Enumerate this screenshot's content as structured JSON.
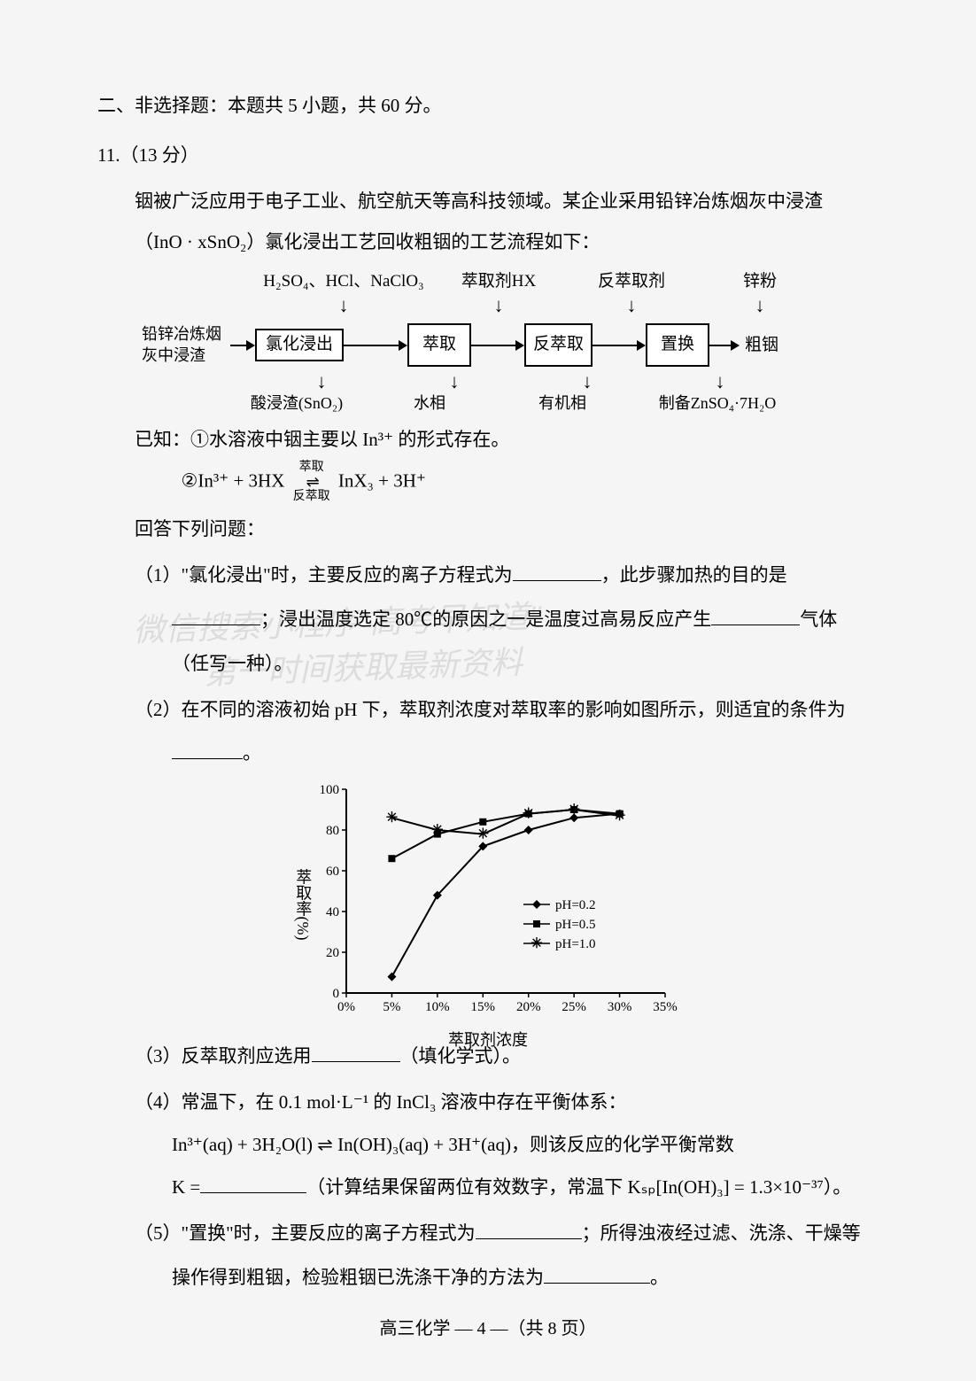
{
  "section_header": "二、非选择题：本题共 5 小题，共 60 分。",
  "q11": {
    "number": "11.（13 分）",
    "intro1": "铟被广泛应用于电子工业、航空航天等高科技领域。某企业采用铅锌冶炼烟灰中浸渣",
    "intro2": "（InO · xSnO₂）氯化浸出工艺回收粗铟的工艺流程如下：",
    "flow": {
      "top": [
        "H₂SO₄、HCl、NaClO₃",
        "萃取剂HX",
        "反萃取剂",
        "锌粉"
      ],
      "left": "铅锌冶炼烟灰中浸渣",
      "boxes": [
        "氯化浸出",
        "萃取",
        "反萃取",
        "置换"
      ],
      "right_out": "粗铟",
      "bottom": [
        "酸浸渣(SnO₂)",
        "水相",
        "有机相",
        "制备ZnSO₄·7H₂O"
      ]
    },
    "known_label": "已知：①水溶液中铟主要以 In³⁺ 的形式存在。",
    "known2_prefix": "②In³⁺ + 3HX",
    "known2_top": "萃取",
    "known2_bot": "反萃取",
    "known2_suffix": " InX₃ + 3H⁺",
    "answer_label": "回答下列问题：",
    "q1a": "（1）\"氯化浸出\"时，主要反应的离子方程式为",
    "q1b": "，此步骤加热的目的是",
    "q1c": "；浸出温度选定 80℃的原因之一是温度过高易反应产生",
    "q1d": "气体",
    "q1e": "（任写一种）。",
    "q2a": "（2）在不同的溶液初始 pH 下，萃取剂浓度对萃取率的影响如图所示，则适宜的条件为",
    "q2b": "。",
    "chart": {
      "xlabel": "萃取剂浓度",
      "ylabel": "萃取率(%)",
      "xticks": [
        "0%",
        "5%",
        "10%",
        "15%",
        "20%",
        "25%",
        "30%",
        "35%"
      ],
      "yticks": [
        0,
        20,
        40,
        60,
        80,
        100
      ],
      "ylim": [
        0,
        100
      ],
      "series": [
        {
          "name": "pH=0.2",
          "marker": "diamond",
          "data": [
            [
              5,
              8
            ],
            [
              10,
              48
            ],
            [
              15,
              72
            ],
            [
              20,
              80
            ],
            [
              25,
              86
            ],
            [
              30,
              88
            ]
          ]
        },
        {
          "name": "pH=0.5",
          "marker": "square",
          "data": [
            [
              5,
              66
            ],
            [
              10,
              78
            ],
            [
              15,
              84
            ],
            [
              20,
              88
            ],
            [
              25,
              90
            ],
            [
              30,
              88
            ]
          ]
        },
        {
          "name": "pH=1.0",
          "marker": "star",
          "data": [
            [
              5,
              86
            ],
            [
              10,
              80
            ],
            [
              15,
              78
            ],
            [
              20,
              88
            ],
            [
              25,
              90
            ],
            [
              30,
              87
            ]
          ]
        }
      ],
      "line_color": "#000000",
      "axis_color": "#000000",
      "font_size": 15
    },
    "q3": "（3）反萃取剂应选用",
    "q3b": "（填化学式）。",
    "q4a": "（4）常温下，在 0.1 mol·L⁻¹ 的 InCl₃ 溶液中存在平衡体系：",
    "q4eq": "In³⁺(aq) + 3H₂O(l) ⇌ In(OH)₃(aq) + 3H⁺(aq)，则该反应的化学平衡常数",
    "q4k": "K =",
    "q4tail": "（计算结果保留两位有效数字，常温下 Kₛₚ[In(OH)₃] = 1.3×10⁻³⁷）。",
    "q5a": "（5）\"置换\"时，主要反应的离子方程式为",
    "q5b": "；所得浊液经过滤、洗涤、干燥等",
    "q5c": "操作得到粗铟，检验粗铟已洗涤干净的方法为",
    "q5d": "。"
  },
  "watermark1": "微信搜索小程序\"高考早知道\"",
  "watermark2": "第一时间获取最新资料",
  "footer": "高三化学 — 4 —（共 8 页）"
}
